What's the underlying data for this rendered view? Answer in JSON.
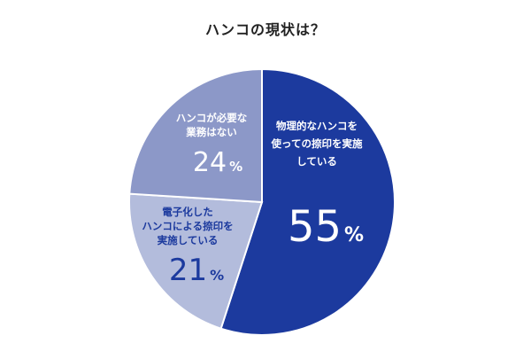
{
  "chart_data": {
    "type": "pie",
    "title": "ハンコの現状は？",
    "slices": [
      {
        "label_lines": [
          "物理的なハンコを",
          "使っての捺印を実施",
          "している"
        ],
        "value": 55,
        "value_text": "55",
        "unit": "%",
        "color": "#1c3a9e",
        "text_color": "#ffffff"
      },
      {
        "label_lines": [
          "電子化した",
          "ハンコによる捺印を",
          "実施している"
        ],
        "value": 21,
        "value_text": "21",
        "unit": "%",
        "color": "#b3bcdc",
        "text_color": "#1c3a9e"
      },
      {
        "label_lines": [
          "ハンコが必要な",
          "業務はない"
        ],
        "value": 24,
        "value_text": "24",
        "unit": "%",
        "color": "#8c98c8",
        "text_color": "#ffffff"
      }
    ]
  }
}
